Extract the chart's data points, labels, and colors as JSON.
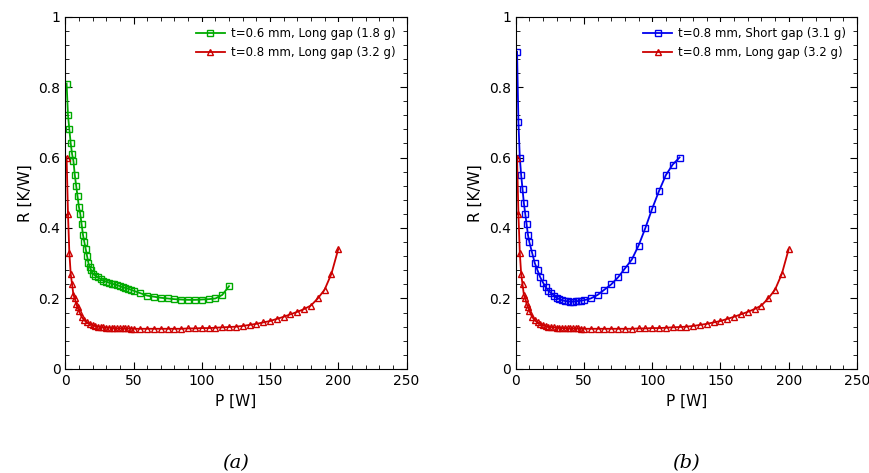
{
  "plot_a": {
    "green_x": [
      1,
      2,
      3,
      4,
      5,
      6,
      7,
      8,
      9,
      10,
      11,
      12,
      13,
      14,
      15,
      16,
      17,
      18,
      19,
      20,
      22,
      24,
      26,
      28,
      30,
      32,
      34,
      36,
      38,
      40,
      42,
      44,
      46,
      48,
      50,
      55,
      60,
      65,
      70,
      75,
      80,
      85,
      90,
      95,
      100,
      105,
      110,
      115,
      120
    ],
    "green_y": [
      0.81,
      0.72,
      0.68,
      0.64,
      0.61,
      0.59,
      0.55,
      0.52,
      0.49,
      0.46,
      0.44,
      0.41,
      0.38,
      0.36,
      0.34,
      0.32,
      0.3,
      0.29,
      0.28,
      0.27,
      0.265,
      0.26,
      0.255,
      0.25,
      0.248,
      0.245,
      0.242,
      0.24,
      0.238,
      0.235,
      0.232,
      0.23,
      0.228,
      0.225,
      0.222,
      0.215,
      0.208,
      0.205,
      0.202,
      0.2,
      0.198,
      0.197,
      0.196,
      0.196,
      0.197,
      0.198,
      0.2,
      0.21,
      0.235
    ],
    "red_x": [
      1,
      2,
      3,
      4,
      5,
      6,
      7,
      8,
      9,
      10,
      12,
      14,
      16,
      18,
      20,
      22,
      24,
      26,
      28,
      30,
      32,
      34,
      36,
      38,
      40,
      42,
      44,
      46,
      48,
      50,
      55,
      60,
      65,
      70,
      75,
      80,
      85,
      90,
      95,
      100,
      105,
      110,
      115,
      120,
      125,
      130,
      135,
      140,
      145,
      150,
      155,
      160,
      165,
      170,
      175,
      180,
      185,
      190,
      195,
      200
    ],
    "red_y": [
      0.6,
      0.44,
      0.33,
      0.27,
      0.24,
      0.21,
      0.2,
      0.185,
      0.175,
      0.165,
      0.148,
      0.138,
      0.132,
      0.128,
      0.125,
      0.122,
      0.12,
      0.119,
      0.118,
      0.117,
      0.117,
      0.116,
      0.116,
      0.115,
      0.115,
      0.115,
      0.115,
      0.115,
      0.114,
      0.114,
      0.114,
      0.114,
      0.114,
      0.114,
      0.114,
      0.114,
      0.114,
      0.115,
      0.115,
      0.116,
      0.116,
      0.117,
      0.118,
      0.119,
      0.12,
      0.122,
      0.125,
      0.128,
      0.132,
      0.136,
      0.142,
      0.148,
      0.155,
      0.162,
      0.17,
      0.18,
      0.2,
      0.225,
      0.27,
      0.34
    ],
    "legend1": "t=0.6 mm, Long gap (1.8 g)",
    "legend2": "t=0.8 mm, Long gap (3.2 g)",
    "xlabel": "P [W]",
    "ylabel": "R [K/W]",
    "xlim": [
      0,
      250
    ],
    "ylim": [
      0,
      1
    ],
    "xticks": [
      0,
      50,
      100,
      150,
      200,
      250
    ],
    "yticks": [
      0,
      0.2,
      0.4,
      0.6,
      0.8,
      1.0
    ]
  },
  "plot_b": {
    "blue_x": [
      1,
      2,
      3,
      4,
      5,
      6,
      7,
      8,
      9,
      10,
      12,
      14,
      16,
      18,
      20,
      22,
      24,
      26,
      28,
      30,
      32,
      34,
      36,
      38,
      40,
      42,
      44,
      46,
      48,
      50,
      55,
      60,
      65,
      70,
      75,
      80,
      85,
      90,
      95,
      100,
      105,
      110,
      115,
      120
    ],
    "blue_y": [
      0.9,
      0.7,
      0.6,
      0.55,
      0.51,
      0.47,
      0.44,
      0.41,
      0.38,
      0.36,
      0.33,
      0.3,
      0.28,
      0.26,
      0.245,
      0.232,
      0.222,
      0.215,
      0.208,
      0.202,
      0.198,
      0.195,
      0.193,
      0.192,
      0.191,
      0.191,
      0.192,
      0.193,
      0.194,
      0.195,
      0.2,
      0.21,
      0.225,
      0.24,
      0.26,
      0.285,
      0.31,
      0.35,
      0.4,
      0.455,
      0.505,
      0.55,
      0.58,
      0.6
    ],
    "red_x": [
      1,
      2,
      3,
      4,
      5,
      6,
      7,
      8,
      9,
      10,
      12,
      14,
      16,
      18,
      20,
      22,
      24,
      26,
      28,
      30,
      32,
      34,
      36,
      38,
      40,
      42,
      44,
      46,
      48,
      50,
      55,
      60,
      65,
      70,
      75,
      80,
      85,
      90,
      95,
      100,
      105,
      110,
      115,
      120,
      125,
      130,
      135,
      140,
      145,
      150,
      155,
      160,
      165,
      170,
      175,
      180,
      185,
      190,
      195,
      200
    ],
    "red_y": [
      0.6,
      0.44,
      0.33,
      0.27,
      0.24,
      0.21,
      0.2,
      0.185,
      0.175,
      0.165,
      0.148,
      0.138,
      0.132,
      0.128,
      0.125,
      0.122,
      0.12,
      0.119,
      0.118,
      0.117,
      0.117,
      0.116,
      0.116,
      0.115,
      0.115,
      0.115,
      0.115,
      0.115,
      0.114,
      0.114,
      0.114,
      0.114,
      0.114,
      0.114,
      0.114,
      0.114,
      0.114,
      0.115,
      0.115,
      0.116,
      0.116,
      0.117,
      0.118,
      0.119,
      0.12,
      0.122,
      0.125,
      0.128,
      0.132,
      0.136,
      0.142,
      0.148,
      0.155,
      0.162,
      0.17,
      0.18,
      0.2,
      0.225,
      0.27,
      0.34
    ],
    "legend1": "t=0.8 mm, Short gap (3.1 g)",
    "legend2": "t=0.8 mm, Long gap (3.2 g)",
    "xlabel": "P [W]",
    "ylabel": "R [K/W]",
    "xlim": [
      0,
      250
    ],
    "ylim": [
      0,
      1
    ],
    "xticks": [
      0,
      50,
      100,
      150,
      200,
      250
    ],
    "yticks": [
      0,
      0.2,
      0.4,
      0.6,
      0.8,
      1.0
    ]
  },
  "label_a": "(a)",
  "label_b": "(b)",
  "green_color": "#00AA00",
  "red_color": "#CC0000",
  "blue_color": "#0000EE",
  "bg_color": "#ffffff"
}
